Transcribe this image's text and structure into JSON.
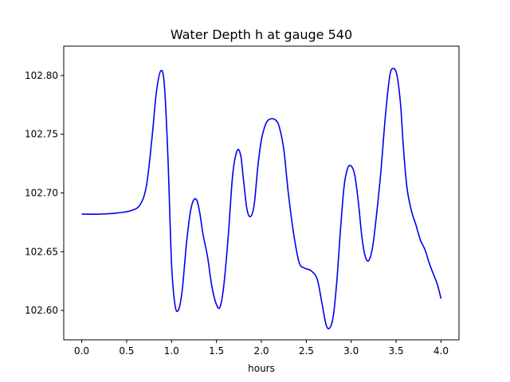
{
  "chart_data": {
    "type": "line",
    "title": "Water Depth h at gauge 540",
    "xlabel": "hours",
    "ylabel": "",
    "xlim": [
      -0.2,
      4.2
    ],
    "ylim": [
      102.575,
      102.825
    ],
    "xticks": [
      0.0,
      0.5,
      1.0,
      1.5,
      2.0,
      2.5,
      3.0,
      3.5,
      4.0
    ],
    "xtick_labels": [
      "0.0",
      "0.5",
      "1.0",
      "1.5",
      "2.0",
      "2.5",
      "3.0",
      "3.5",
      "4.0"
    ],
    "yticks": [
      102.6,
      102.65,
      102.7,
      102.75,
      102.8
    ],
    "ytick_labels": [
      "102.60",
      "102.65",
      "102.70",
      "102.75",
      "102.80"
    ],
    "grid": false,
    "series": [
      {
        "color": "#0000ee",
        "x": [
          0.0,
          0.2,
          0.4,
          0.55,
          0.65,
          0.72,
          0.78,
          0.83,
          0.88,
          0.92,
          0.96,
          1.0,
          1.04,
          1.08,
          1.12,
          1.17,
          1.22,
          1.27,
          1.31,
          1.35,
          1.4,
          1.45,
          1.5,
          1.54,
          1.58,
          1.63,
          1.68,
          1.73,
          1.77,
          1.8,
          1.84,
          1.88,
          1.92,
          1.96,
          2.0,
          2.05,
          2.1,
          2.16,
          2.2,
          2.25,
          2.3,
          2.36,
          2.42,
          2.48,
          2.55,
          2.62,
          2.67,
          2.72,
          2.76,
          2.8,
          2.84,
          2.88,
          2.92,
          2.96,
          3.0,
          3.04,
          3.08,
          3.12,
          3.16,
          3.2,
          3.24,
          3.28,
          3.33,
          3.38,
          3.43,
          3.47,
          3.51,
          3.55,
          3.58,
          3.62,
          3.67,
          3.72,
          3.77,
          3.82,
          3.87,
          3.92,
          3.96,
          4.0
        ],
        "y": [
          102.682,
          102.682,
          102.683,
          102.685,
          102.69,
          102.706,
          102.745,
          102.785,
          102.804,
          102.792,
          102.73,
          102.64,
          102.604,
          102.601,
          102.618,
          102.66,
          102.688,
          102.695,
          102.685,
          102.665,
          102.646,
          102.62,
          102.605,
          102.603,
          102.62,
          102.662,
          102.715,
          102.736,
          102.732,
          102.712,
          102.686,
          102.68,
          102.69,
          102.722,
          102.745,
          102.759,
          102.763,
          102.762,
          102.756,
          102.737,
          102.7,
          102.665,
          102.641,
          102.636,
          102.634,
          102.627,
          102.608,
          102.588,
          102.585,
          102.595,
          102.625,
          102.668,
          102.705,
          102.721,
          102.723,
          102.715,
          102.692,
          102.662,
          102.645,
          102.643,
          102.655,
          102.68,
          102.718,
          102.765,
          102.8,
          102.806,
          102.8,
          102.775,
          102.74,
          102.705,
          102.685,
          102.673,
          102.66,
          102.652,
          102.64,
          102.63,
          102.622,
          102.61
        ]
      }
    ]
  }
}
